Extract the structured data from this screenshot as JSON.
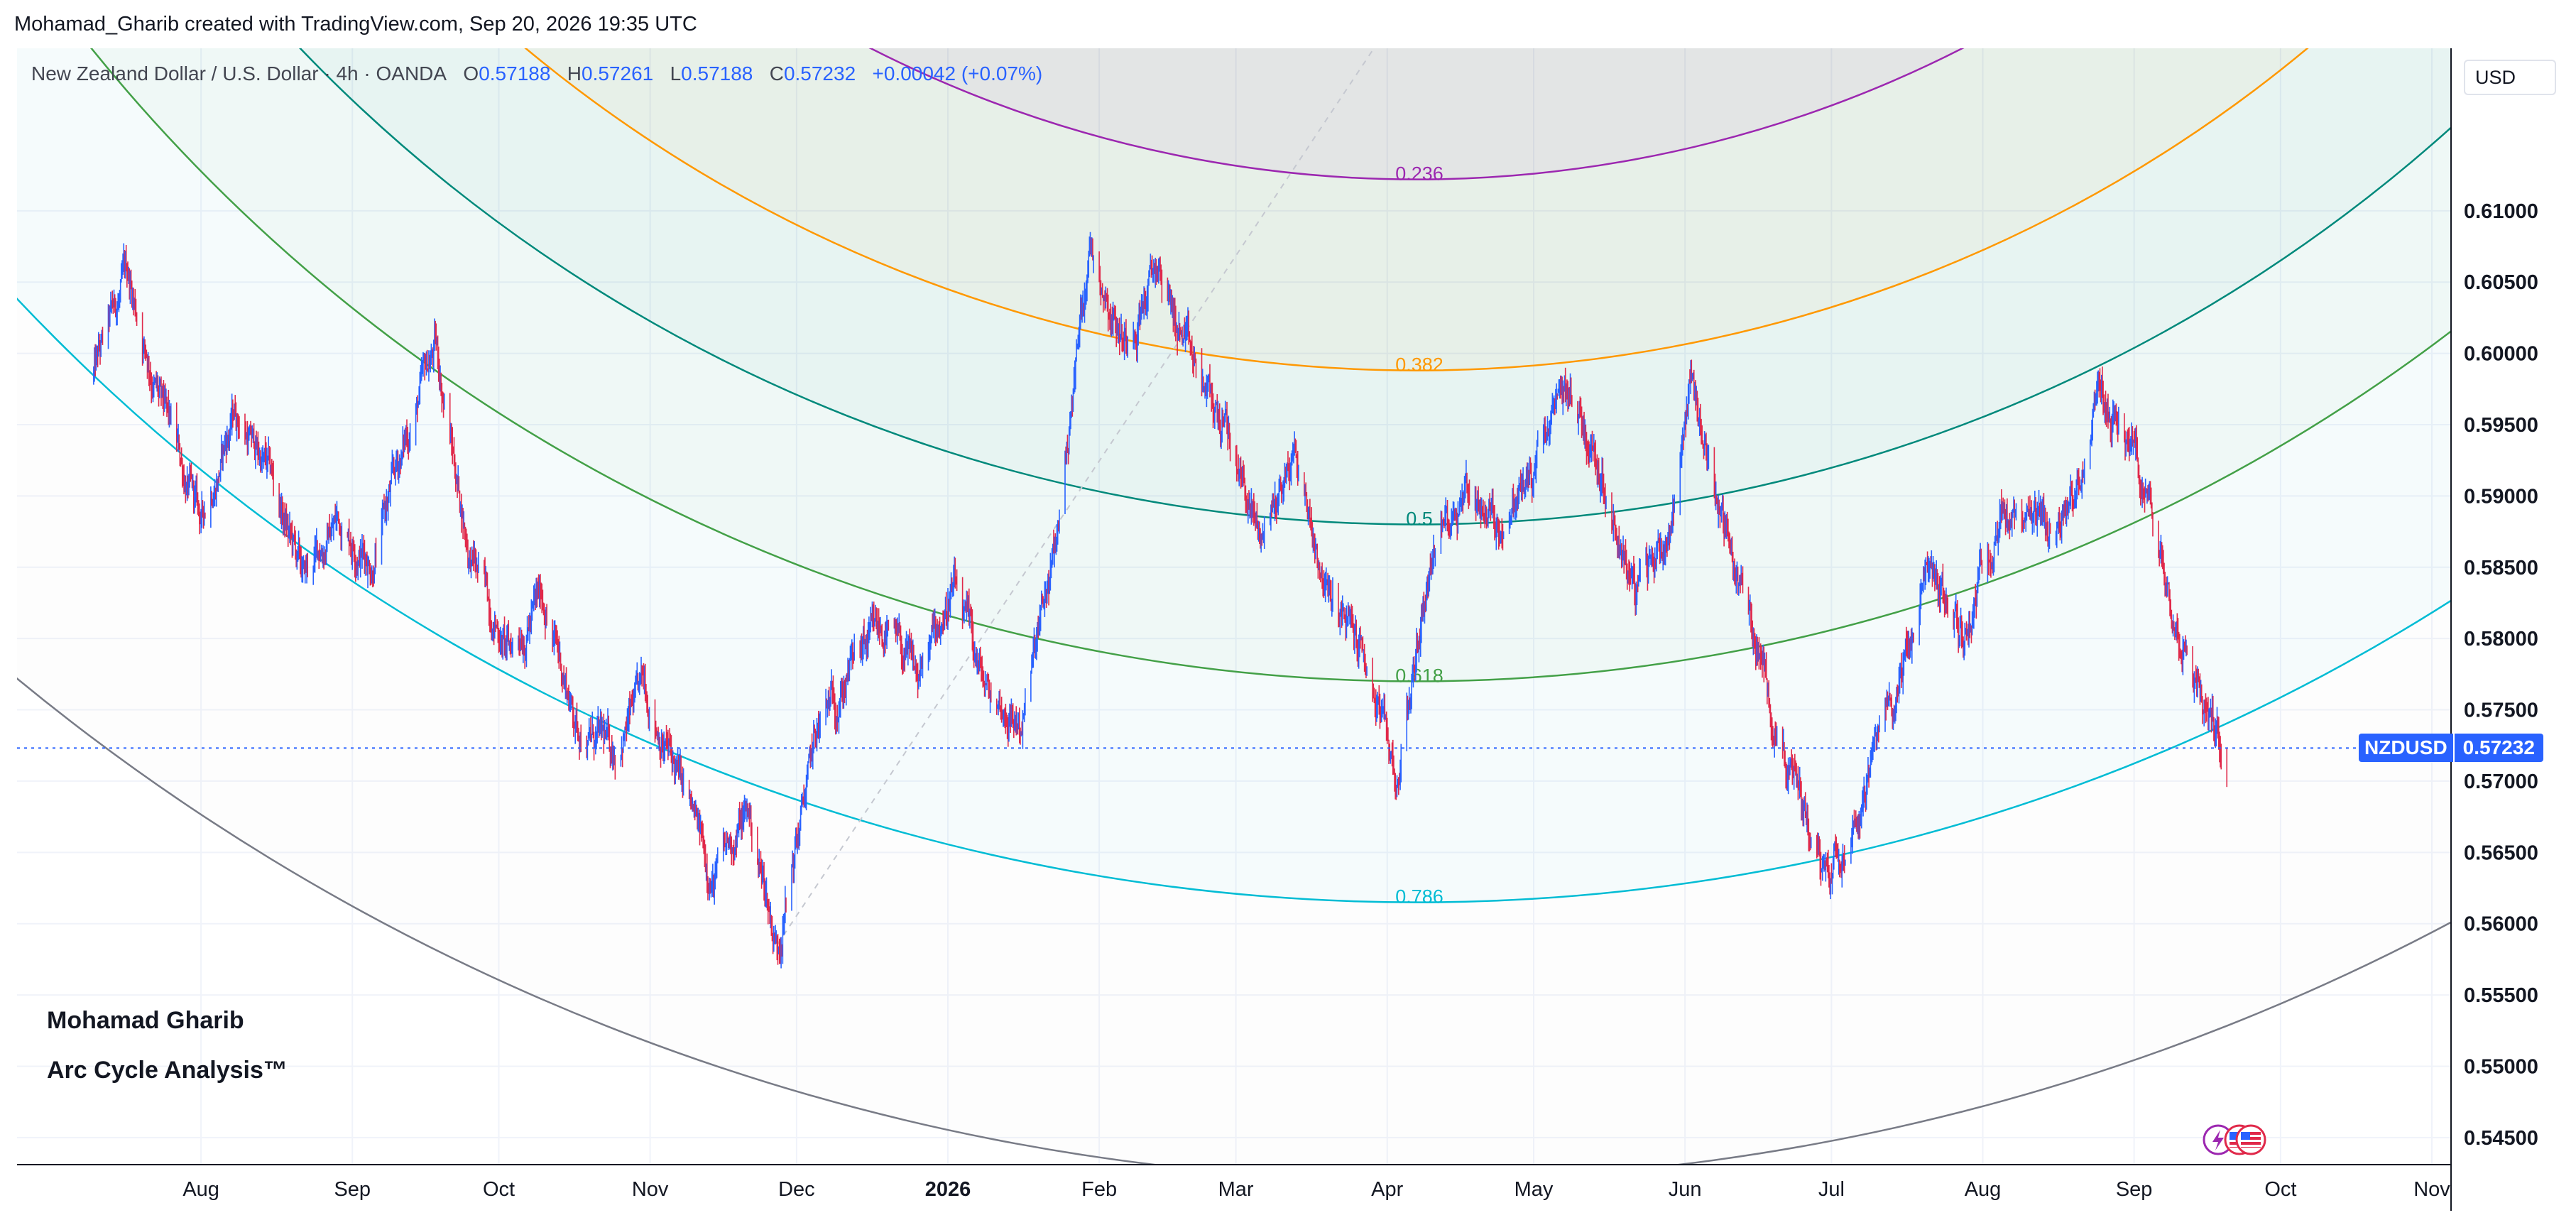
{
  "header": {
    "credit": "Mohamad_Gharib created with TradingView.com, Sep 20, 2026 19:35 UTC"
  },
  "legend": {
    "instrument": "New Zealand Dollar / U.S. Dollar · 4h · OANDA",
    "o_label": "O",
    "o_value": "0.57188",
    "h_label": "H",
    "h_value": "0.57261",
    "l_label": "L",
    "l_value": "0.57188",
    "c_label": "C",
    "c_value": "0.57232",
    "change": "+0.00042 (+0.07%)"
  },
  "currency_button": "USD",
  "watermark": {
    "title": "Mohamad Gharib",
    "subtitle": "Arc Cycle Analysis™"
  },
  "price_badge": {
    "symbol": "NZDUSD",
    "price": "0.57232"
  },
  "colors": {
    "candle_up": "#2962ff",
    "candle_down": "#e0294a",
    "arc_236": "#9c27b0",
    "arc_382": "#ff9800",
    "arc_5": "#00897b",
    "arc_618": "#43a047",
    "arc_786": "#00bcd4",
    "arc_1": "#787b86",
    "price_line": "#2962ff"
  },
  "chart_data": {
    "type": "candlestick",
    "symbol": "NZDUSD",
    "timeframe": "4h",
    "exchange": "OANDA",
    "x_tick_labels": [
      "Aug",
      "Sep",
      "Oct",
      "Nov",
      "Dec",
      "2026",
      "Feb",
      "Mar",
      "Apr",
      "May",
      "Jun",
      "Jul",
      "Aug",
      "Sep",
      "Oct",
      "Nov"
    ],
    "y_tick_labels": [
      "0.61000",
      "0.60500",
      "0.60000",
      "0.59500",
      "0.59000",
      "0.58500",
      "0.58000",
      "0.57500",
      "0.57000",
      "0.56500",
      "0.56000",
      "0.55500",
      "0.55000",
      "0.54500"
    ],
    "ylim": [
      0.5435,
      0.6205
    ],
    "last_price": 0.57232,
    "price_path": [
      {
        "x": "2025-07-10",
        "y": 0.5985
      },
      {
        "x": "2025-07-17",
        "y": 0.6055
      },
      {
        "x": "2025-07-24",
        "y": 0.596
      },
      {
        "x": "2025-08-01",
        "y": 0.588
      },
      {
        "x": "2025-08-08",
        "y": 0.596
      },
      {
        "x": "2025-08-15",
        "y": 0.5915
      },
      {
        "x": "2025-08-22",
        "y": 0.584
      },
      {
        "x": "2025-08-29",
        "y": 0.5885
      },
      {
        "x": "2025-09-05",
        "y": 0.5855
      },
      {
        "x": "2025-09-12",
        "y": 0.594
      },
      {
        "x": "2025-09-18",
        "y": 0.6005
      },
      {
        "x": "2025-09-25",
        "y": 0.586
      },
      {
        "x": "2025-10-03",
        "y": 0.579
      },
      {
        "x": "2025-10-10",
        "y": 0.583
      },
      {
        "x": "2025-10-17",
        "y": 0.574
      },
      {
        "x": "2025-10-24",
        "y": 0.572
      },
      {
        "x": "2025-10-31",
        "y": 0.5765
      },
      {
        "x": "2025-11-07",
        "y": 0.57
      },
      {
        "x": "2025-11-14",
        "y": 0.563
      },
      {
        "x": "2025-11-21",
        "y": 0.568
      },
      {
        "x": "2025-11-27",
        "y": 0.5585
      },
      {
        "x": "2025-12-05",
        "y": 0.573
      },
      {
        "x": "2025-12-12",
        "y": 0.578
      },
      {
        "x": "2025-12-19",
        "y": 0.5805
      },
      {
        "x": "2025-12-26",
        "y": 0.577
      },
      {
        "x": "2026-01-02",
        "y": 0.5835
      },
      {
        "x": "2026-01-09",
        "y": 0.576
      },
      {
        "x": "2026-01-16",
        "y": 0.574
      },
      {
        "x": "2026-01-23",
        "y": 0.586
      },
      {
        "x": "2026-01-30",
        "y": 0.608
      },
      {
        "x": "2026-02-06",
        "y": 0.601
      },
      {
        "x": "2026-02-13",
        "y": 0.606
      },
      {
        "x": "2026-02-20",
        "y": 0.599
      },
      {
        "x": "2026-02-27",
        "y": 0.5945
      },
      {
        "x": "2026-03-06",
        "y": 0.587
      },
      {
        "x": "2026-03-13",
        "y": 0.593
      },
      {
        "x": "2026-03-20",
        "y": 0.583
      },
      {
        "x": "2026-03-27",
        "y": 0.579
      },
      {
        "x": "2026-04-03",
        "y": 0.57
      },
      {
        "x": "2026-04-10",
        "y": 0.586
      },
      {
        "x": "2026-04-17",
        "y": 0.591
      },
      {
        "x": "2026-04-24",
        "y": 0.588
      },
      {
        "x": "2026-05-01",
        "y": 0.5915
      },
      {
        "x": "2026-05-08",
        "y": 0.5975
      },
      {
        "x": "2026-05-15",
        "y": 0.592
      },
      {
        "x": "2026-05-22",
        "y": 0.583
      },
      {
        "x": "2026-05-29",
        "y": 0.588
      },
      {
        "x": "2026-06-02",
        "y": 0.5985
      },
      {
        "x": "2026-06-09",
        "y": 0.588
      },
      {
        "x": "2026-06-16",
        "y": 0.579
      },
      {
        "x": "2026-06-23",
        "y": 0.57
      },
      {
        "x": "2026-06-30",
        "y": 0.564
      },
      {
        "x": "2026-07-07",
        "y": 0.569
      },
      {
        "x": "2026-07-14",
        "y": 0.576
      },
      {
        "x": "2026-07-21",
        "y": 0.585
      },
      {
        "x": "2026-07-28",
        "y": 0.58
      },
      {
        "x": "2026-08-04",
        "y": 0.589
      },
      {
        "x": "2026-08-11",
        "y": 0.587
      },
      {
        "x": "2026-08-18",
        "y": 0.588
      },
      {
        "x": "2026-08-25",
        "y": 0.5975
      },
      {
        "x": "2026-09-01",
        "y": 0.593
      },
      {
        "x": "2026-09-08",
        "y": 0.584
      },
      {
        "x": "2026-09-15",
        "y": 0.576
      },
      {
        "x": "2026-09-20",
        "y": 0.5723
      }
    ],
    "fib_speed_arcs": [
      {
        "level": "0.236",
        "apex_date": "2026-04-07",
        "price": 0.6122
      },
      {
        "level": "0.382",
        "apex_date": "2026-04-07",
        "price": 0.5988
      },
      {
        "level": "0.5",
        "apex_date": "2026-04-07",
        "price": 0.588
      },
      {
        "level": "0.618",
        "apex_date": "2026-04-07",
        "price": 0.577
      },
      {
        "level": "0.786",
        "apex_date": "2026-04-07",
        "price": 0.5615
      },
      {
        "level": "1",
        "apex_date": "2026-04-07",
        "price": 0.542
      }
    ],
    "arc_anchor": {
      "x": "2025-11-27",
      "y": 0.5585
    },
    "grid": true
  }
}
